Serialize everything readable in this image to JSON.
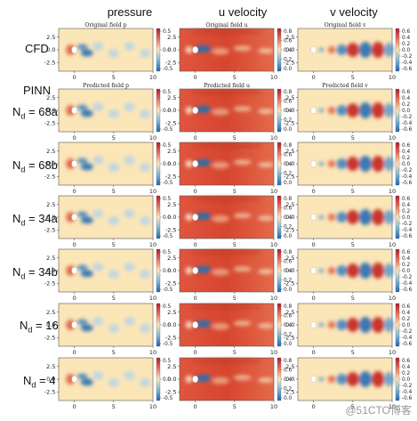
{
  "headers": [
    "pressure",
    "u velocity",
    "v velocity"
  ],
  "rows": [
    {
      "label": "CFD",
      "sub": "",
      "subtitles": [
        "Original field p",
        "Original field u",
        "Original field v"
      ]
    },
    {
      "label": "N",
      "sub": "d",
      "suffix": " = 68a",
      "subtitles": [
        "Predicted field p",
        "Predicted field u",
        "Predicted field v"
      ]
    },
    {
      "label": "N",
      "sub": "d",
      "suffix": " = 68b",
      "subtitles": [
        "",
        "",
        ""
      ]
    },
    {
      "label": "N",
      "sub": "d",
      "suffix": " = 34a",
      "subtitles": [
        "",
        "",
        ""
      ]
    },
    {
      "label": "N",
      "sub": "d",
      "suffix": " = 34b",
      "subtitles": [
        "",
        "",
        ""
      ]
    },
    {
      "label": "N",
      "sub": "d",
      "suffix": " = 16",
      "subtitles": [
        "",
        "",
        ""
      ]
    },
    {
      "label": "N",
      "sub": "d",
      "suffix": " = 4",
      "subtitles": [
        "",
        "",
        ""
      ]
    }
  ],
  "pinn_label": "PINN",
  "y_ticks": [
    "2.5",
    "0.0",
    "-2.5"
  ],
  "x_ticks": [
    "0",
    "5",
    "10"
  ],
  "colorbars": [
    {
      "ticks": [
        "0.5",
        "0.0",
        "-0.5"
      ]
    },
    {
      "ticks": [
        "0.8",
        "0.6",
        "0.4",
        "0.2",
        "0.0"
      ]
    },
    {
      "ticks": [
        "0.6",
        "0.4",
        "0.2",
        "0.0",
        "-0.2",
        "-0.4",
        "-0.6"
      ]
    }
  ],
  "watermark": "@51CTO博客",
  "colors": {
    "red": "#b2182b",
    "blue": "#2166ac",
    "neutral": "#fbe6b8"
  }
}
